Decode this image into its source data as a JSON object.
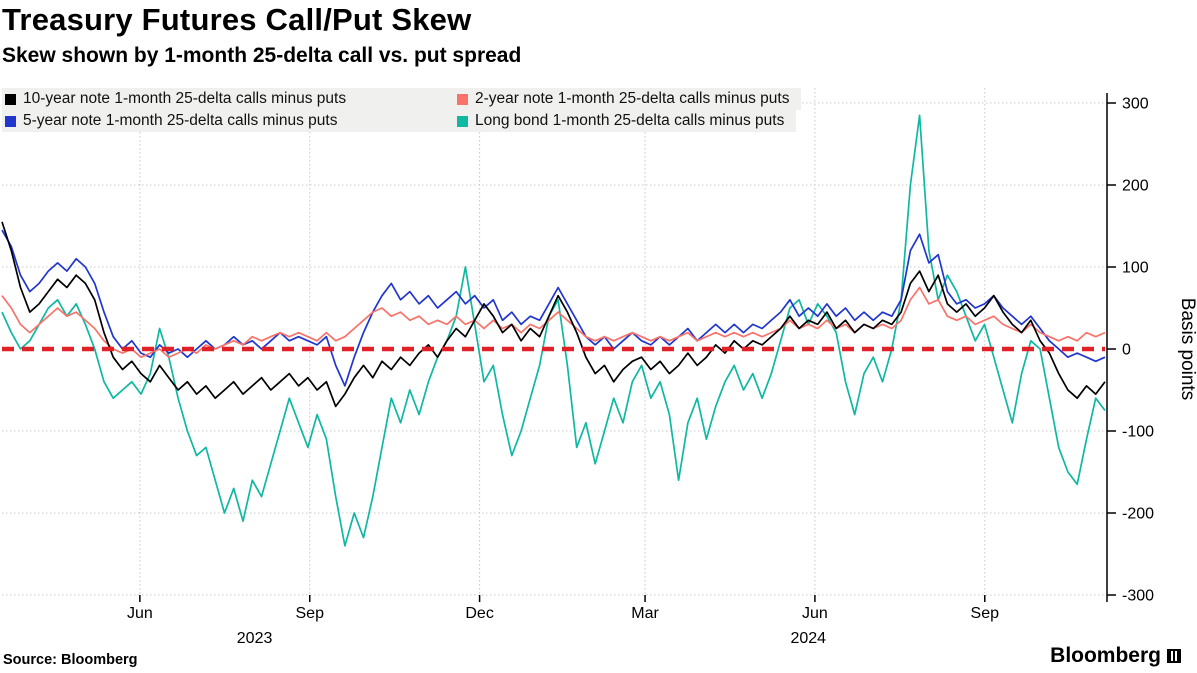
{
  "footer": {
    "source": "Source: Bloomberg",
    "brand": "Bloomberg"
  },
  "chart_data": {
    "type": "line",
    "title": "Treasury Futures Call/Put Skew",
    "subtitle": "Skew shown by 1-month 25-delta call vs. put spread",
    "ylabel": "Basis points",
    "ylim": [
      -300,
      300
    ],
    "yticks": [
      300,
      200,
      100,
      0,
      -100,
      -200,
      -300
    ],
    "grid": "dotted",
    "legend_position": "top-left",
    "zero_line": {
      "value": 0,
      "color": "#e02128",
      "style": "dashed"
    },
    "xticks": [
      {
        "label": "Jun",
        "pos": 0.125
      },
      {
        "label": "Sep",
        "pos": 0.279
      },
      {
        "label": "Dec",
        "pos": 0.433
      },
      {
        "label": "Mar",
        "pos": 0.583
      },
      {
        "label": "Jun",
        "pos": 0.737
      },
      {
        "label": "Sep",
        "pos": 0.891
      }
    ],
    "year_labels": [
      {
        "label": "2023",
        "pos": 0.229
      },
      {
        "label": "2024",
        "pos": 0.731
      }
    ],
    "series": [
      {
        "name": "10-year note 1-month 25-delta calls minus puts",
        "color": "#000000",
        "values": [
          155,
          120,
          75,
          45,
          55,
          70,
          85,
          75,
          90,
          80,
          60,
          20,
          -10,
          -25,
          -15,
          -30,
          -40,
          -20,
          -35,
          -50,
          -40,
          -55,
          -45,
          -60,
          -50,
          -40,
          -55,
          -45,
          -35,
          -50,
          -40,
          -30,
          -45,
          -35,
          -50,
          -40,
          -70,
          -55,
          -35,
          -20,
          -35,
          -15,
          -25,
          -10,
          -20,
          -5,
          5,
          -10,
          10,
          25,
          15,
          35,
          55,
          40,
          20,
          30,
          10,
          25,
          15,
          40,
          65,
          45,
          20,
          -10,
          -30,
          -20,
          -40,
          -25,
          -15,
          -10,
          -25,
          -15,
          -30,
          -20,
          -5,
          -20,
          -10,
          5,
          -5,
          10,
          0,
          10,
          5,
          15,
          25,
          40,
          25,
          35,
          30,
          45,
          25,
          35,
          20,
          30,
          25,
          35,
          30,
          45,
          80,
          95,
          70,
          90,
          55,
          45,
          55,
          40,
          50,
          65,
          45,
          30,
          20,
          35,
          10,
          -5,
          -30,
          -50,
          -60,
          -45,
          -55,
          -40
        ]
      },
      {
        "name": "2-year note 1-month 25-delta calls minus puts",
        "color": "#f8736a",
        "values": [
          65,
          50,
          30,
          20,
          30,
          40,
          50,
          40,
          45,
          35,
          25,
          10,
          0,
          -5,
          0,
          -10,
          -5,
          0,
          -10,
          -5,
          0,
          -5,
          5,
          0,
          5,
          10,
          5,
          15,
          10,
          15,
          20,
          15,
          20,
          15,
          10,
          20,
          10,
          15,
          25,
          35,
          45,
          50,
          40,
          45,
          35,
          40,
          30,
          35,
          30,
          40,
          30,
          35,
          25,
          35,
          25,
          30,
          20,
          30,
          25,
          35,
          45,
          35,
          25,
          15,
          10,
          15,
          10,
          15,
          20,
          15,
          10,
          15,
          10,
          15,
          20,
          10,
          15,
          20,
          15,
          20,
          15,
          20,
          15,
          20,
          25,
          35,
          25,
          30,
          25,
          35,
          25,
          30,
          20,
          30,
          25,
          30,
          25,
          35,
          60,
          75,
          55,
          60,
          40,
          35,
          40,
          30,
          35,
          40,
          30,
          25,
          20,
          30,
          20,
          15,
          10,
          15,
          10,
          20,
          15,
          20
        ]
      },
      {
        "name": "5-year note 1-month 25-delta calls minus puts",
        "color": "#2036cc",
        "values": [
          145,
          125,
          90,
          70,
          80,
          95,
          105,
          95,
          110,
          100,
          80,
          45,
          15,
          0,
          10,
          -5,
          -10,
          5,
          -5,
          0,
          -10,
          0,
          10,
          0,
          5,
          15,
          5,
          10,
          0,
          10,
          20,
          10,
          15,
          10,
          5,
          15,
          -20,
          -45,
          -10,
          20,
          45,
          65,
          80,
          60,
          70,
          55,
          65,
          50,
          60,
          70,
          55,
          65,
          50,
          60,
          35,
          45,
          30,
          40,
          35,
          55,
          75,
          55,
          35,
          15,
          5,
          15,
          0,
          10,
          20,
          10,
          5,
          15,
          5,
          15,
          25,
          10,
          20,
          30,
          20,
          30,
          20,
          30,
          25,
          35,
          45,
          60,
          40,
          50,
          40,
          55,
          40,
          50,
          35,
          45,
          35,
          45,
          40,
          60,
          120,
          140,
          105,
          115,
          70,
          55,
          60,
          50,
          55,
          65,
          50,
          40,
          30,
          40,
          25,
          10,
          0,
          -10,
          -5,
          -10,
          -15,
          -10
        ]
      },
      {
        "name": "Long bond 1-month 25-delta calls minus puts",
        "color": "#0fb8a1",
        "values": [
          45,
          20,
          0,
          10,
          30,
          50,
          60,
          40,
          55,
          30,
          0,
          -40,
          -60,
          -50,
          -40,
          -55,
          -30,
          25,
          -10,
          -60,
          -100,
          -130,
          -120,
          -160,
          -200,
          -170,
          -210,
          -160,
          -180,
          -140,
          -100,
          -60,
          -90,
          -120,
          -80,
          -110,
          -180,
          -240,
          -200,
          -230,
          -180,
          -120,
          -60,
          -90,
          -50,
          -80,
          -40,
          -10,
          10,
          40,
          100,
          30,
          -40,
          -20,
          -80,
          -130,
          -100,
          -60,
          -20,
          40,
          60,
          -20,
          -120,
          -90,
          -140,
          -100,
          -60,
          -90,
          -40,
          -20,
          -60,
          -40,
          -80,
          -160,
          -90,
          -60,
          -110,
          -70,
          -40,
          -20,
          -50,
          -30,
          -60,
          -30,
          10,
          50,
          60,
          30,
          55,
          40,
          20,
          -40,
          -80,
          -30,
          -10,
          -40,
          0,
          60,
          200,
          285,
          120,
          60,
          90,
          70,
          40,
          10,
          30,
          -10,
          -50,
          -90,
          -30,
          10,
          0,
          -60,
          -120,
          -150,
          -165,
          -110,
          -60,
          -75
        ]
      }
    ]
  }
}
